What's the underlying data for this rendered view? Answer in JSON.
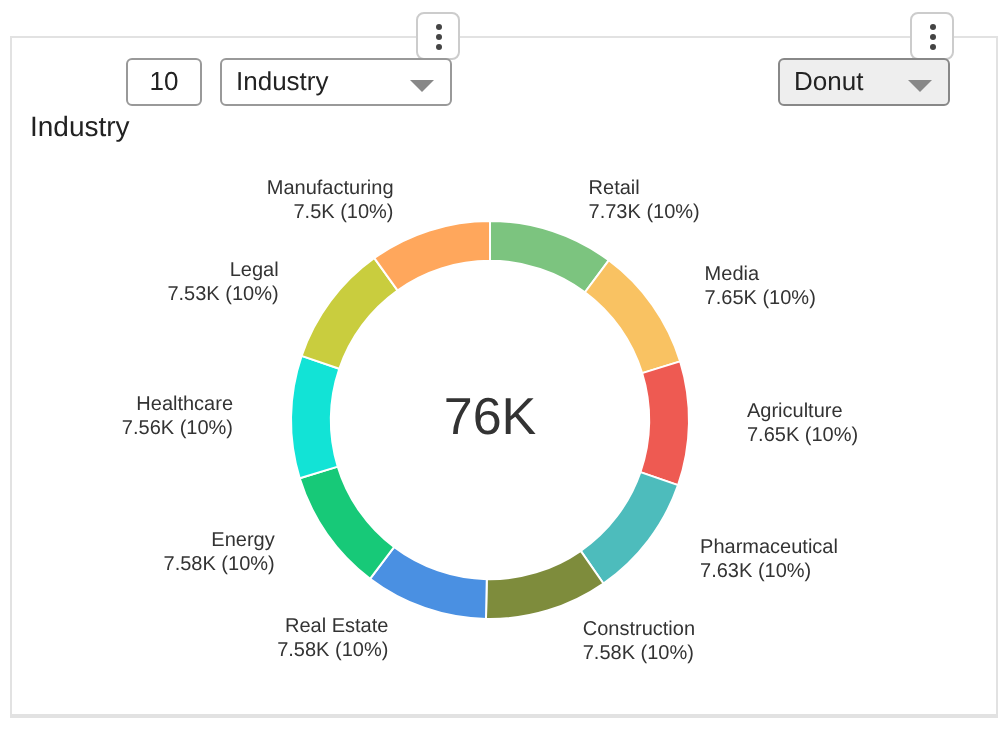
{
  "chart_data": {
    "type": "donut",
    "title": "Industry",
    "categories": [
      "Retail",
      "Media",
      "Agriculture",
      "Pharmaceutical",
      "Construction",
      "Real Estate",
      "Energy",
      "Healthcare",
      "Legal",
      "Manufacturing"
    ],
    "values": [
      7730,
      7650,
      7650,
      7630,
      7580,
      7580,
      7580,
      7560,
      7530,
      7500
    ],
    "value_labels": [
      "7.73K (10%)",
      "7.65K (10%)",
      "7.65K (10%)",
      "7.63K (10%)",
      "7.58K (10%)",
      "7.58K (10%)",
      "7.58K (10%)",
      "7.56K (10%)",
      "7.53K (10%)",
      "7.5K (10%)"
    ],
    "colors": [
      "#7cc47f",
      "#f9c262",
      "#ee5a52",
      "#4dbcbc",
      "#7e8c3c",
      "#4a90e2",
      "#17c978",
      "#12e3d6",
      "#c9cd3e",
      "#ffa75c"
    ],
    "annotations": [
      "76K",
      "10",
      "Industry",
      "Donut"
    ],
    "legend": false
  }
}
